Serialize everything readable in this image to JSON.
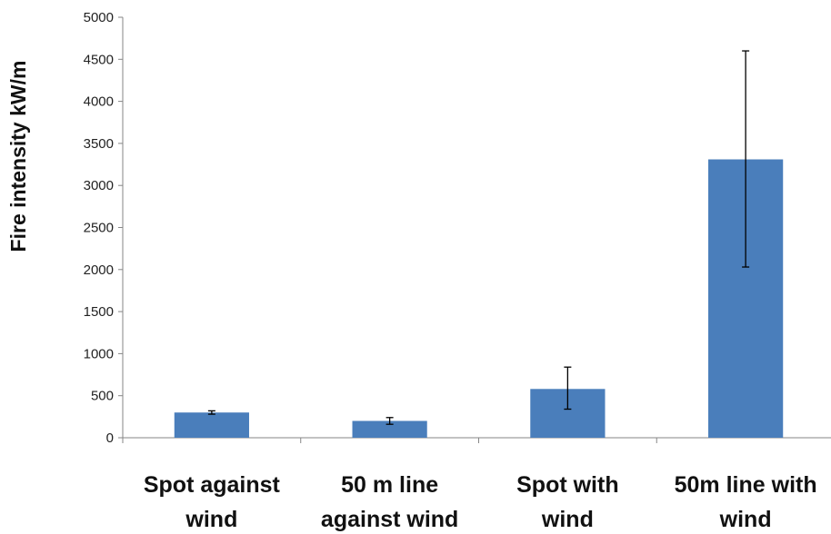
{
  "chart_data": {
    "type": "bar",
    "title": "",
    "xlabel": "",
    "ylabel": "Fire intensity kW/m",
    "ylim": [
      0,
      5000
    ],
    "yticks": [
      0,
      500,
      1000,
      1500,
      2000,
      2500,
      3000,
      3500,
      4000,
      4500,
      5000
    ],
    "categories": [
      [
        "Spot against",
        "wind"
      ],
      [
        "50 m line",
        "against wind"
      ],
      [
        "Spot with",
        "wind"
      ],
      [
        "50m line with",
        "wind"
      ]
    ],
    "values": [
      300,
      200,
      580,
      3310
    ],
    "error_low": [
      280,
      160,
      340,
      2030
    ],
    "error_high": [
      320,
      240,
      840,
      4600
    ],
    "grid": false,
    "bar_color": "#4a7ebb",
    "axis_color": "#868686"
  }
}
